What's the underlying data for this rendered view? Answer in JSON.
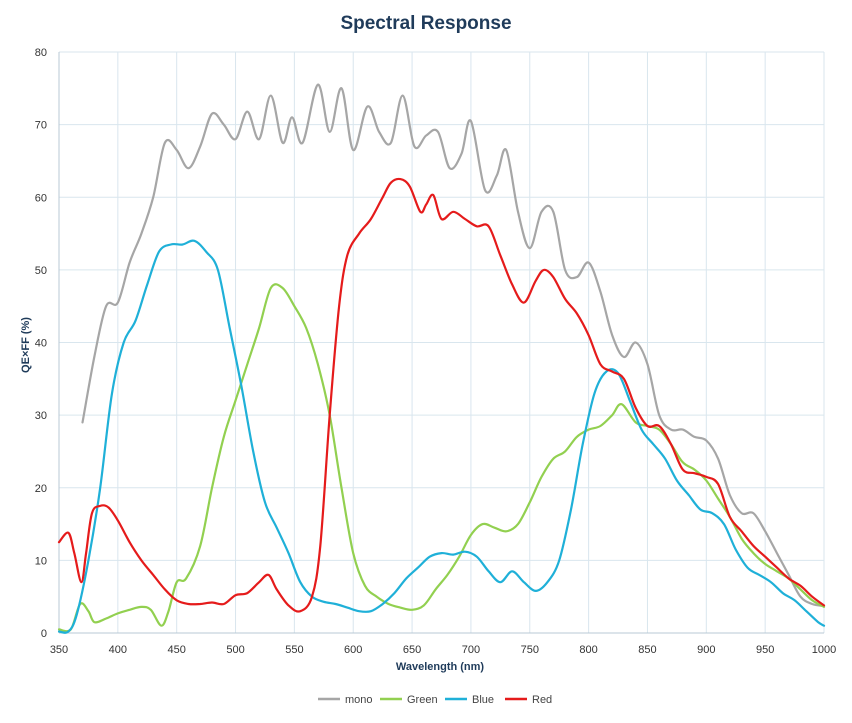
{
  "chart_data": {
    "type": "line",
    "title": "Spectral Response",
    "xlabel": "Wavelength (nm)",
    "ylabel": "QE×FF (%)",
    "xlim": [
      350,
      1000
    ],
    "ylim": [
      0,
      80
    ],
    "xticks": [
      350,
      400,
      450,
      500,
      550,
      600,
      650,
      700,
      750,
      800,
      850,
      900,
      950,
      1000
    ],
    "yticks": [
      0,
      10,
      20,
      30,
      40,
      50,
      60,
      70,
      80
    ],
    "grid": true,
    "legend_position": "bottom",
    "series": [
      {
        "name": "mono",
        "color": "#a6a6a6",
        "points": [
          [
            370,
            29
          ],
          [
            380,
            38
          ],
          [
            390,
            45
          ],
          [
            400,
            45.5
          ],
          [
            410,
            51
          ],
          [
            420,
            55
          ],
          [
            430,
            60
          ],
          [
            440,
            67.5
          ],
          [
            450,
            66.5
          ],
          [
            460,
            64
          ],
          [
            470,
            67
          ],
          [
            480,
            71.5
          ],
          [
            490,
            70
          ],
          [
            500,
            68
          ],
          [
            510,
            71.8
          ],
          [
            520,
            68
          ],
          [
            530,
            74
          ],
          [
            540,
            67.5
          ],
          [
            548,
            71
          ],
          [
            557,
            67.5
          ],
          [
            570,
            75.5
          ],
          [
            580,
            69
          ],
          [
            590,
            75
          ],
          [
            600,
            66.5
          ],
          [
            612,
            72.5
          ],
          [
            622,
            69
          ],
          [
            632,
            67.5
          ],
          [
            642,
            74
          ],
          [
            652,
            67
          ],
          [
            662,
            68.5
          ],
          [
            672,
            69
          ],
          [
            682,
            64
          ],
          [
            692,
            66
          ],
          [
            700,
            70.5
          ],
          [
            712,
            61
          ],
          [
            722,
            63
          ],
          [
            730,
            66.5
          ],
          [
            740,
            58
          ],
          [
            750,
            53
          ],
          [
            760,
            58
          ],
          [
            770,
            58
          ],
          [
            780,
            50
          ],
          [
            790,
            49
          ],
          [
            800,
            51
          ],
          [
            810,
            47
          ],
          [
            820,
            41
          ],
          [
            830,
            38
          ],
          [
            840,
            40
          ],
          [
            850,
            37
          ],
          [
            860,
            30
          ],
          [
            870,
            28
          ],
          [
            880,
            28
          ],
          [
            890,
            27
          ],
          [
            900,
            26.5
          ],
          [
            910,
            24
          ],
          [
            920,
            19
          ],
          [
            930,
            16.5
          ],
          [
            940,
            16.5
          ],
          [
            950,
            14
          ],
          [
            960,
            11
          ],
          [
            970,
            8
          ],
          [
            980,
            5
          ],
          [
            990,
            4
          ],
          [
            1000,
            3.7
          ]
        ]
      },
      {
        "name": "Green",
        "color": "#92d050",
        "points": [
          [
            350,
            0.5
          ],
          [
            360,
            0.5
          ],
          [
            368,
            4
          ],
          [
            375,
            3
          ],
          [
            380,
            1.5
          ],
          [
            390,
            2
          ],
          [
            400,
            2.7
          ],
          [
            410,
            3.2
          ],
          [
            420,
            3.6
          ],
          [
            428,
            3.2
          ],
          [
            437,
            1
          ],
          [
            443,
            3
          ],
          [
            450,
            7
          ],
          [
            458,
            7.5
          ],
          [
            470,
            12
          ],
          [
            480,
            20
          ],
          [
            490,
            27
          ],
          [
            500,
            32
          ],
          [
            510,
            37
          ],
          [
            520,
            42
          ],
          [
            530,
            47.5
          ],
          [
            540,
            47.5
          ],
          [
            550,
            45
          ],
          [
            560,
            42
          ],
          [
            570,
            37
          ],
          [
            580,
            30
          ],
          [
            590,
            20
          ],
          [
            600,
            11
          ],
          [
            610,
            6.5
          ],
          [
            620,
            5
          ],
          [
            630,
            4
          ],
          [
            640,
            3.5
          ],
          [
            650,
            3.2
          ],
          [
            660,
            3.8
          ],
          [
            670,
            6
          ],
          [
            680,
            8
          ],
          [
            690,
            10.5
          ],
          [
            700,
            13.5
          ],
          [
            710,
            15
          ],
          [
            720,
            14.5
          ],
          [
            730,
            14
          ],
          [
            740,
            15
          ],
          [
            750,
            18
          ],
          [
            760,
            21.5
          ],
          [
            770,
            24
          ],
          [
            780,
            25
          ],
          [
            790,
            27
          ],
          [
            800,
            28
          ],
          [
            810,
            28.5
          ],
          [
            820,
            30
          ],
          [
            828,
            31.5
          ],
          [
            840,
            29
          ],
          [
            850,
            28.5
          ],
          [
            860,
            28
          ],
          [
            870,
            26
          ],
          [
            880,
            23.5
          ],
          [
            890,
            22.5
          ],
          [
            900,
            21
          ],
          [
            910,
            18.5
          ],
          [
            920,
            16
          ],
          [
            930,
            13
          ],
          [
            940,
            11
          ],
          [
            950,
            9.5
          ],
          [
            960,
            8.5
          ],
          [
            970,
            7.5
          ],
          [
            980,
            6
          ],
          [
            990,
            4.5
          ],
          [
            1000,
            3.6
          ]
        ]
      },
      {
        "name": "Blue",
        "color": "#1fb0d8",
        "points": [
          [
            350,
            0.2
          ],
          [
            358,
            0.2
          ],
          [
            365,
            2.5
          ],
          [
            375,
            10
          ],
          [
            385,
            20
          ],
          [
            395,
            33
          ],
          [
            405,
            40
          ],
          [
            415,
            43
          ],
          [
            425,
            48
          ],
          [
            435,
            52.5
          ],
          [
            445,
            53.5
          ],
          [
            455,
            53.5
          ],
          [
            465,
            54
          ],
          [
            475,
            52.5
          ],
          [
            485,
            50
          ],
          [
            495,
            42
          ],
          [
            505,
            34
          ],
          [
            515,
            25
          ],
          [
            525,
            18
          ],
          [
            535,
            14.5
          ],
          [
            545,
            11
          ],
          [
            555,
            7
          ],
          [
            565,
            5
          ],
          [
            575,
            4.3
          ],
          [
            585,
            4
          ],
          [
            595,
            3.5
          ],
          [
            605,
            3
          ],
          [
            615,
            3
          ],
          [
            625,
            4
          ],
          [
            635,
            5.5
          ],
          [
            645,
            7.5
          ],
          [
            655,
            9
          ],
          [
            665,
            10.5
          ],
          [
            675,
            11
          ],
          [
            685,
            10.8
          ],
          [
            695,
            11.2
          ],
          [
            705,
            10.5
          ],
          [
            715,
            8.5
          ],
          [
            725,
            7
          ],
          [
            735,
            8.5
          ],
          [
            745,
            7
          ],
          [
            755,
            5.8
          ],
          [
            765,
            7
          ],
          [
            775,
            10
          ],
          [
            785,
            17
          ],
          [
            795,
            26
          ],
          [
            805,
            33
          ],
          [
            815,
            36
          ],
          [
            825,
            35.8
          ],
          [
            835,
            32
          ],
          [
            845,
            28
          ],
          [
            855,
            26
          ],
          [
            865,
            24
          ],
          [
            875,
            21
          ],
          [
            885,
            19
          ],
          [
            895,
            17
          ],
          [
            905,
            16.5
          ],
          [
            915,
            15
          ],
          [
            925,
            11.5
          ],
          [
            935,
            9
          ],
          [
            945,
            8
          ],
          [
            955,
            7
          ],
          [
            965,
            5.5
          ],
          [
            975,
            4.5
          ],
          [
            985,
            3
          ],
          [
            995,
            1.5
          ],
          [
            1000,
            1
          ]
        ]
      },
      {
        "name": "Red",
        "color": "#e51b1b",
        "points": [
          [
            350,
            12.5
          ],
          [
            358,
            13.8
          ],
          [
            363,
            11
          ],
          [
            369,
            7
          ],
          [
            373,
            11
          ],
          [
            378,
            16.5
          ],
          [
            385,
            17.5
          ],
          [
            392,
            17.3
          ],
          [
            400,
            15.5
          ],
          [
            410,
            12.5
          ],
          [
            420,
            10
          ],
          [
            430,
            8
          ],
          [
            440,
            6
          ],
          [
            450,
            4.5
          ],
          [
            460,
            4
          ],
          [
            470,
            4
          ],
          [
            480,
            4.2
          ],
          [
            490,
            4
          ],
          [
            500,
            5.2
          ],
          [
            510,
            5.5
          ],
          [
            520,
            7
          ],
          [
            528,
            8
          ],
          [
            535,
            6
          ],
          [
            545,
            3.8
          ],
          [
            555,
            3
          ],
          [
            565,
            5
          ],
          [
            572,
            12
          ],
          [
            580,
            30
          ],
          [
            588,
            45
          ],
          [
            595,
            52
          ],
          [
            605,
            55
          ],
          [
            615,
            57
          ],
          [
            625,
            60
          ],
          [
            632,
            62
          ],
          [
            640,
            62.5
          ],
          [
            648,
            61.5
          ],
          [
            657,
            58
          ],
          [
            662,
            59
          ],
          [
            668,
            60.3
          ],
          [
            675,
            57
          ],
          [
            685,
            58
          ],
          [
            695,
            57
          ],
          [
            705,
            56
          ],
          [
            715,
            56
          ],
          [
            725,
            52
          ],
          [
            735,
            48
          ],
          [
            745,
            45.5
          ],
          [
            755,
            48.5
          ],
          [
            762,
            50
          ],
          [
            770,
            49
          ],
          [
            780,
            46
          ],
          [
            790,
            44
          ],
          [
            800,
            41
          ],
          [
            810,
            37
          ],
          [
            820,
            36
          ],
          [
            830,
            35
          ],
          [
            840,
            31
          ],
          [
            850,
            28.5
          ],
          [
            860,
            28.5
          ],
          [
            870,
            26
          ],
          [
            880,
            22.5
          ],
          [
            890,
            22
          ],
          [
            900,
            21.5
          ],
          [
            910,
            20.5
          ],
          [
            920,
            16
          ],
          [
            930,
            14
          ],
          [
            940,
            12
          ],
          [
            950,
            10.5
          ],
          [
            960,
            9
          ],
          [
            970,
            7.5
          ],
          [
            980,
            6.5
          ],
          [
            990,
            5
          ],
          [
            1000,
            3.8
          ]
        ]
      }
    ]
  }
}
